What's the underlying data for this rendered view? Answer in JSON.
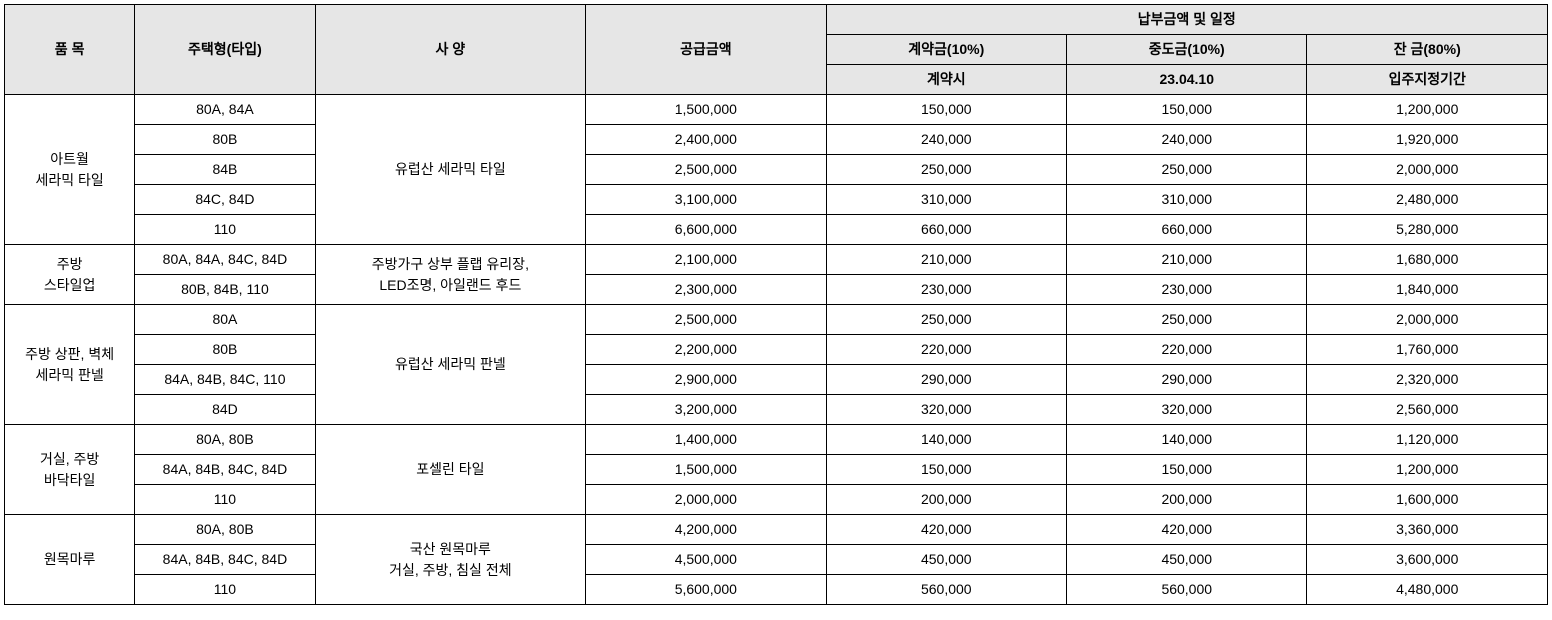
{
  "headers": {
    "item": "품 목",
    "type": "주택형(타입)",
    "spec": "사  양",
    "supply": "공급금액",
    "schedule": "납부금액 및 일정",
    "deposit_label": "계약금(10%)",
    "mid_label": "중도금(10%)",
    "balance_label": "잔 금(80%)",
    "deposit_when": "계약시",
    "mid_when": "23.04.10",
    "balance_when": "입주지정기간"
  },
  "groups": [
    {
      "item_lines": [
        "아트월",
        "세라믹 타일"
      ],
      "spec": "유럽산 세라믹 타일",
      "rows": [
        {
          "type": "80A, 84A",
          "supply": "1,500,000",
          "deposit": "150,000",
          "mid": "150,000",
          "balance": "1,200,000"
        },
        {
          "type": "80B",
          "supply": "2,400,000",
          "deposit": "240,000",
          "mid": "240,000",
          "balance": "1,920,000"
        },
        {
          "type": "84B",
          "supply": "2,500,000",
          "deposit": "250,000",
          "mid": "250,000",
          "balance": "2,000,000"
        },
        {
          "type": "84C, 84D",
          "supply": "3,100,000",
          "deposit": "310,000",
          "mid": "310,000",
          "balance": "2,480,000"
        },
        {
          "type": "110",
          "supply": "6,600,000",
          "deposit": "660,000",
          "mid": "660,000",
          "balance": "5,280,000"
        }
      ]
    },
    {
      "item_lines": [
        "주방",
        "스타일업"
      ],
      "spec_lines": [
        "주방가구 상부 플랩 유리장,",
        "LED조명, 아일랜드 후드"
      ],
      "rows": [
        {
          "type": "80A, 84A, 84C, 84D",
          "supply": "2,100,000",
          "deposit": "210,000",
          "mid": "210,000",
          "balance": "1,680,000"
        },
        {
          "type": "80B, 84B, 110",
          "supply": "2,300,000",
          "deposit": "230,000",
          "mid": "230,000",
          "balance": "1,840,000"
        }
      ]
    },
    {
      "item_lines": [
        "주방 상판, 벽체",
        "세라믹 판넬"
      ],
      "spec": "유럽산 세라믹 판넬",
      "rows": [
        {
          "type": "80A",
          "supply": "2,500,000",
          "deposit": "250,000",
          "mid": "250,000",
          "balance": "2,000,000"
        },
        {
          "type": "80B",
          "supply": "2,200,000",
          "deposit": "220,000",
          "mid": "220,000",
          "balance": "1,760,000"
        },
        {
          "type": "84A, 84B, 84C, 110",
          "supply": "2,900,000",
          "deposit": "290,000",
          "mid": "290,000",
          "balance": "2,320,000"
        },
        {
          "type": "84D",
          "supply": "3,200,000",
          "deposit": "320,000",
          "mid": "320,000",
          "balance": "2,560,000"
        }
      ]
    },
    {
      "item_lines": [
        "거실, 주방",
        "바닥타일"
      ],
      "spec": "포셀린 타일",
      "rows": [
        {
          "type": "80A, 80B",
          "supply": "1,400,000",
          "deposit": "140,000",
          "mid": "140,000",
          "balance": "1,120,000"
        },
        {
          "type": "84A, 84B, 84C, 84D",
          "supply": "1,500,000",
          "deposit": "150,000",
          "mid": "150,000",
          "balance": "1,200,000"
        },
        {
          "type": "110",
          "supply": "2,000,000",
          "deposit": "200,000",
          "mid": "200,000",
          "balance": "1,600,000"
        }
      ]
    },
    {
      "item_lines": [
        "원목마루"
      ],
      "spec_lines": [
        "국산 원목마루",
        "거실, 주방, 침실 전체"
      ],
      "rows": [
        {
          "type": "80A, 80B",
          "supply": "4,200,000",
          "deposit": "420,000",
          "mid": "420,000",
          "balance": "3,360,000"
        },
        {
          "type": "84A, 84B, 84C, 84D",
          "supply": "4,500,000",
          "deposit": "450,000",
          "mid": "450,000",
          "balance": "3,600,000"
        },
        {
          "type": "110",
          "supply": "5,600,000",
          "deposit": "560,000",
          "mid": "560,000",
          "balance": "4,480,000"
        }
      ]
    }
  ]
}
